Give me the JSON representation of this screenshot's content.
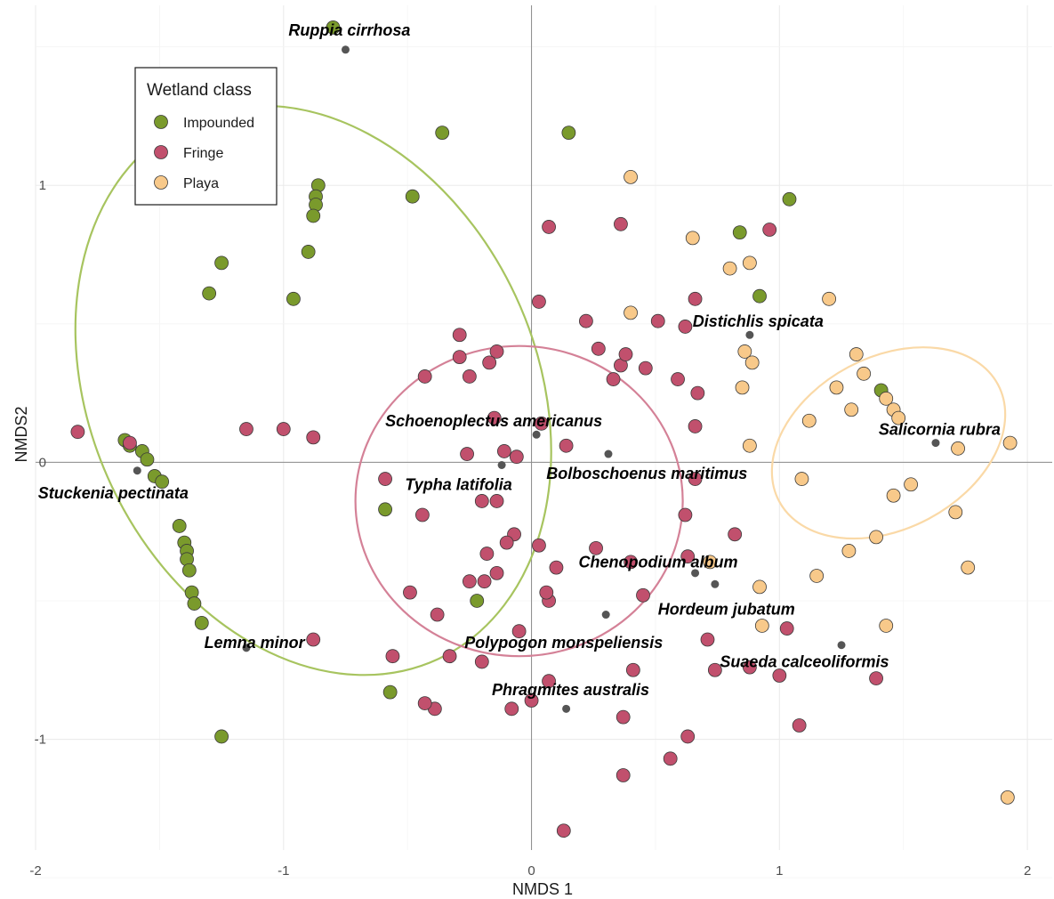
{
  "chart_data": {
    "type": "scatter",
    "xlabel": "NMDS 1",
    "ylabel": "NMDS2",
    "xlim": [
      -2.0,
      2.1
    ],
    "ylim": [
      -1.4,
      1.65
    ],
    "x_ticks": [
      {
        "value": -2,
        "label": "-2"
      },
      {
        "value": -1,
        "label": "-1"
      },
      {
        "value": 0,
        "label": "0"
      },
      {
        "value": 1,
        "label": "1"
      },
      {
        "value": 2,
        "label": "2"
      }
    ],
    "y_ticks": [
      {
        "value": -1,
        "label": "-1"
      },
      {
        "value": 0,
        "label": "0"
      },
      {
        "value": 1,
        "label": "1"
      }
    ],
    "grid": true,
    "zero_lines": true,
    "legend": {
      "title": "Wetland class",
      "placement": "top-left"
    },
    "series": [
      {
        "name": "Impounded",
        "color": "#7a9a2c",
        "ellipse": {
          "cx": -0.88,
          "cy": 0.26,
          "rx": 0.9,
          "ry": 1.07,
          "angle_deg": -25,
          "stroke": "#a7c45f"
        },
        "points": [
          [
            -0.8,
            1.57
          ],
          [
            -0.36,
            1.19
          ],
          [
            0.15,
            1.19
          ],
          [
            -0.86,
            1.0
          ],
          [
            -0.87,
            0.96
          ],
          [
            -0.87,
            0.93
          ],
          [
            -0.88,
            0.89
          ],
          [
            -0.48,
            0.96
          ],
          [
            -0.9,
            0.76
          ],
          [
            -1.25,
            0.72
          ],
          [
            -1.3,
            0.61
          ],
          [
            -0.96,
            0.59
          ],
          [
            -1.64,
            0.08
          ],
          [
            -1.62,
            0.06
          ],
          [
            -1.57,
            0.04
          ],
          [
            -1.55,
            0.01
          ],
          [
            -1.52,
            -0.05
          ],
          [
            -1.49,
            -0.07
          ],
          [
            -1.42,
            -0.23
          ],
          [
            -1.4,
            -0.29
          ],
          [
            -1.39,
            -0.32
          ],
          [
            -1.39,
            -0.35
          ],
          [
            -1.38,
            -0.39
          ],
          [
            -1.37,
            -0.47
          ],
          [
            -1.36,
            -0.51
          ],
          [
            -1.33,
            -0.58
          ],
          [
            -1.25,
            -0.99
          ],
          [
            -0.59,
            -0.17
          ],
          [
            -0.22,
            -0.5
          ],
          [
            -0.57,
            -0.83
          ],
          [
            0.84,
            0.83
          ],
          [
            0.92,
            0.6
          ],
          [
            1.04,
            0.95
          ],
          [
            1.41,
            0.26
          ]
        ]
      },
      {
        "name": "Fringe",
        "color": "#c1506d",
        "ellipse": {
          "cx": -0.05,
          "cy": -0.14,
          "rx": 0.66,
          "ry": 0.56,
          "angle_deg": 0,
          "stroke": "#d48197"
        },
        "points": [
          [
            -1.83,
            0.11
          ],
          [
            -1.62,
            0.07
          ],
          [
            -1.15,
            0.12
          ],
          [
            -1.0,
            0.12
          ],
          [
            -0.88,
            0.09
          ],
          [
            0.03,
            0.58
          ],
          [
            -0.29,
            0.46
          ],
          [
            -0.29,
            0.38
          ],
          [
            -0.14,
            0.4
          ],
          [
            -0.17,
            0.36
          ],
          [
            -0.43,
            0.31
          ],
          [
            -0.25,
            0.31
          ],
          [
            -0.59,
            -0.06
          ],
          [
            -0.44,
            -0.19
          ],
          [
            -0.15,
            0.16
          ],
          [
            -0.11,
            0.04
          ],
          [
            -0.06,
            0.02
          ],
          [
            -0.26,
            0.03
          ],
          [
            -0.2,
            -0.14
          ],
          [
            -0.14,
            -0.14
          ],
          [
            0.04,
            0.14
          ],
          [
            0.14,
            0.06
          ],
          [
            0.07,
            0.85
          ],
          [
            0.22,
            0.51
          ],
          [
            0.27,
            0.41
          ],
          [
            0.36,
            0.35
          ],
          [
            0.33,
            0.3
          ],
          [
            0.38,
            0.39
          ],
          [
            0.46,
            0.34
          ],
          [
            0.51,
            0.51
          ],
          [
            0.59,
            0.3
          ],
          [
            0.62,
            0.49
          ],
          [
            0.66,
            0.59
          ],
          [
            0.67,
            0.25
          ],
          [
            0.66,
            0.13
          ],
          [
            0.36,
            0.86
          ],
          [
            0.96,
            0.84
          ],
          [
            -0.07,
            -0.26
          ],
          [
            -0.1,
            -0.29
          ],
          [
            -0.18,
            -0.33
          ],
          [
            -0.25,
            -0.43
          ],
          [
            -0.14,
            -0.4
          ],
          [
            -0.19,
            -0.43
          ],
          [
            -0.05,
            -0.61
          ],
          [
            0.07,
            -0.5
          ],
          [
            0.06,
            -0.47
          ],
          [
            0.03,
            -0.3
          ],
          [
            0.1,
            -0.38
          ],
          [
            0.26,
            -0.31
          ],
          [
            0.4,
            -0.36
          ],
          [
            0.45,
            -0.48
          ],
          [
            0.63,
            -0.34
          ],
          [
            0.66,
            -0.06
          ],
          [
            0.62,
            -0.19
          ],
          [
            0.82,
            -0.26
          ],
          [
            0.71,
            -0.64
          ],
          [
            0.74,
            -0.75
          ],
          [
            0.88,
            -0.74
          ],
          [
            1.0,
            -0.77
          ],
          [
            1.03,
            -0.6
          ],
          [
            1.08,
            -0.95
          ],
          [
            1.39,
            -0.78
          ],
          [
            0.41,
            -0.75
          ],
          [
            0.37,
            -0.92
          ],
          [
            0.63,
            -0.99
          ],
          [
            0.56,
            -1.07
          ],
          [
            0.37,
            -1.13
          ],
          [
            0.13,
            -1.33
          ],
          [
            0.07,
            -0.79
          ],
          [
            0.0,
            -0.86
          ],
          [
            -0.08,
            -0.89
          ],
          [
            -0.2,
            -0.72
          ],
          [
            -0.33,
            -0.7
          ],
          [
            -0.39,
            -0.89
          ],
          [
            -0.43,
            -0.87
          ],
          [
            -0.38,
            -0.55
          ],
          [
            -0.49,
            -0.47
          ],
          [
            -0.56,
            -0.7
          ],
          [
            -0.88,
            -0.64
          ]
        ]
      },
      {
        "name": "Playa",
        "color": "#f8c98a",
        "ellipse": {
          "cx": 1.44,
          "cy": 0.07,
          "rx": 0.5,
          "ry": 0.31,
          "angle_deg": -28,
          "stroke": "#fad9a7"
        },
        "points": [
          [
            0.4,
            1.03
          ],
          [
            0.65,
            0.81
          ],
          [
            0.8,
            0.7
          ],
          [
            0.88,
            0.72
          ],
          [
            1.2,
            0.59
          ],
          [
            0.4,
            0.54
          ],
          [
            0.86,
            0.4
          ],
          [
            0.89,
            0.36
          ],
          [
            0.85,
            0.27
          ],
          [
            1.31,
            0.39
          ],
          [
            1.34,
            0.32
          ],
          [
            1.23,
            0.27
          ],
          [
            1.29,
            0.19
          ],
          [
            1.12,
            0.15
          ],
          [
            1.43,
            0.23
          ],
          [
            1.46,
            0.19
          ],
          [
            1.48,
            0.16
          ],
          [
            1.72,
            0.05
          ],
          [
            1.93,
            0.07
          ],
          [
            0.88,
            0.06
          ],
          [
            1.09,
            -0.06
          ],
          [
            1.53,
            -0.08
          ],
          [
            1.46,
            -0.12
          ],
          [
            1.71,
            -0.18
          ],
          [
            1.39,
            -0.27
          ],
          [
            1.28,
            -0.32
          ],
          [
            1.15,
            -0.41
          ],
          [
            1.76,
            -0.38
          ],
          [
            0.72,
            -0.36
          ],
          [
            0.92,
            -0.45
          ],
          [
            0.93,
            -0.59
          ],
          [
            1.43,
            -0.59
          ],
          [
            1.92,
            -1.21
          ]
        ]
      }
    ],
    "species": [
      {
        "name": "Ruppia cirrhosa",
        "point": [
          -0.75,
          1.49
        ],
        "label": [
          -0.98,
          1.54
        ],
        "anchor": "start"
      },
      {
        "name": "Distichlis spicata",
        "point": [
          0.88,
          0.46
        ],
        "label": [
          0.65,
          0.49
        ],
        "anchor": "start"
      },
      {
        "name": "Schoenoplectus americanus",
        "point": [
          0.02,
          0.1
        ],
        "label": [
          -0.59,
          0.13
        ],
        "anchor": "start"
      },
      {
        "name": "Salicornia rubra",
        "point": [
          1.63,
          0.07
        ],
        "label": [
          1.4,
          0.1
        ],
        "anchor": "start"
      },
      {
        "name": "Bolboschoenus maritimus",
        "point": [
          0.31,
          0.03
        ],
        "label": [
          0.06,
          -0.06
        ],
        "anchor": "start"
      },
      {
        "name": "Typha latifolia",
        "point": [
          -0.12,
          -0.01
        ],
        "label": [
          -0.51,
          -0.1
        ],
        "anchor": "start"
      },
      {
        "name": "Stuckenia pectinata",
        "point": [
          -1.59,
          -0.03
        ],
        "label": [
          -1.99,
          -0.13
        ],
        "anchor": "start"
      },
      {
        "name": "Chenopodium album",
        "point": [
          0.66,
          -0.4
        ],
        "label": [
          0.19,
          -0.38
        ],
        "anchor": "start"
      },
      {
        "name": "Hordeum jubatum",
        "point": [
          0.74,
          -0.44
        ],
        "label": [
          0.51,
          -0.55
        ],
        "anchor": "start"
      },
      {
        "name": "Lemna minor",
        "point": [
          -1.15,
          -0.67
        ],
        "label": [
          -1.32,
          -0.67
        ],
        "anchor": "start"
      },
      {
        "name": "Polypogon monspeliensis",
        "point": [
          0.3,
          -0.55
        ],
        "label": [
          -0.27,
          -0.67
        ],
        "anchor": "start"
      },
      {
        "name": "Suaeda calceoliformis",
        "point": [
          1.25,
          -0.66
        ],
        "label": [
          0.76,
          -0.74
        ],
        "anchor": "start"
      },
      {
        "name": "Phragmites australis",
        "point": [
          0.14,
          -0.89
        ],
        "label": [
          -0.16,
          -0.84
        ],
        "anchor": "start"
      }
    ]
  }
}
